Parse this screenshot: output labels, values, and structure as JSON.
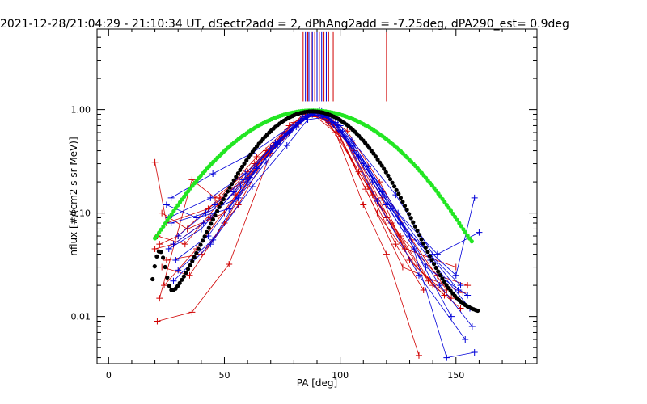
{
  "chart_data": {
    "type": "scatter",
    "title": "2021-12-28/21:04:29 - 21:10:34 UT, dSectr2add = 2, dPhAng2add = -7.25deg, dPA290_est=   0.9deg",
    "xlabel": "PA [deg]",
    "ylabel": "nflux [#/(cm2 s sr MeV)]",
    "xlim": [
      -5,
      185
    ],
    "ylim": [
      0.0035,
      6.0
    ],
    "yscale": "log",
    "grid": false,
    "x_ticks": [
      0,
      50,
      100,
      150
    ],
    "x_tick_labels": [
      "0",
      "50",
      "100",
      "150"
    ],
    "y_ticks": [
      0.01,
      0.1,
      1.0
    ],
    "y_tick_labels": [
      "0.01",
      "0.10",
      "1.00"
    ],
    "colors": {
      "red": "#d00000",
      "blue": "#0000d8",
      "green": "#22e622",
      "black": "#000000"
    },
    "series": [
      {
        "color": "red",
        "style": "line+plus",
        "lines": [
          [
            [
              21,
              0.009
            ],
            [
              36,
              0.011
            ],
            [
              52,
              0.032
            ],
            [
              70,
              0.38
            ],
            [
              85,
              0.85
            ],
            [
              90,
              0.95
            ],
            [
              98,
              0.6
            ],
            [
              110,
              0.12
            ],
            [
              120,
              0.04
            ],
            [
              134,
              0.0042
            ]
          ],
          [
            [
              20,
              0.31
            ],
            [
              25,
              0.08
            ],
            [
              43,
              0.11
            ],
            [
              60,
              0.22
            ],
            [
              75,
              0.55
            ],
            [
              88,
              0.9
            ],
            [
              95,
              0.75
            ],
            [
              112,
              0.18
            ],
            [
              124,
              0.05
            ],
            [
              136,
              0.018
            ]
          ],
          [
            [
              22,
              0.05
            ],
            [
              30,
              0.06
            ],
            [
              48,
              0.14
            ],
            [
              64,
              0.35
            ],
            [
              80,
              0.75
            ],
            [
              90,
              0.95
            ],
            [
              102,
              0.55
            ],
            [
              118,
              0.14
            ],
            [
              130,
              0.035
            ],
            [
              145,
              0.016
            ]
          ],
          [
            [
              23,
              0.03
            ],
            [
              35,
              0.025
            ],
            [
              50,
              0.08
            ],
            [
              68,
              0.4
            ],
            [
              84,
              0.9
            ],
            [
              92,
              0.92
            ],
            [
              106,
              0.4
            ],
            [
              122,
              0.08
            ],
            [
              140,
              0.02
            ],
            [
              152,
              0.012
            ]
          ],
          [
            [
              20,
              0.045
            ],
            [
              28,
              0.05
            ],
            [
              44,
              0.09
            ],
            [
              58,
              0.2
            ],
            [
              78,
              0.7
            ],
            [
              87,
              0.95
            ],
            [
              100,
              0.55
            ],
            [
              116,
              0.1
            ],
            [
              133,
              0.03
            ],
            [
              148,
              0.015
            ]
          ],
          [
            [
              24,
              0.02
            ],
            [
              38,
              0.045
            ],
            [
              55,
              0.15
            ],
            [
              72,
              0.45
            ],
            [
              86,
              0.88
            ],
            [
              96,
              0.8
            ],
            [
              108,
              0.25
            ],
            [
              126,
              0.06
            ],
            [
              142,
              0.025
            ],
            [
              155,
              0.02
            ]
          ],
          [
            [
              21,
              0.06
            ],
            [
              33,
              0.05
            ],
            [
              47,
              0.12
            ],
            [
              63,
              0.3
            ],
            [
              76,
              0.6
            ],
            [
              89,
              0.93
            ],
            [
              99,
              0.7
            ],
            [
              114,
              0.15
            ],
            [
              128,
              0.045
            ],
            [
              150,
              0.03
            ]
          ],
          [
            [
              22,
              0.015
            ],
            [
              36,
              0.21
            ],
            [
              46,
              0.14
            ],
            [
              60,
              0.25
            ],
            [
              74,
              0.5
            ],
            [
              85,
              0.85
            ],
            [
              94,
              0.85
            ],
            [
              104,
              0.45
            ],
            [
              120,
              0.09
            ],
            [
              138,
              0.022
            ]
          ],
          [
            [
              23,
              0.1
            ],
            [
              34,
              0.07
            ],
            [
              50,
              0.1
            ],
            [
              66,
              0.33
            ],
            [
              82,
              0.72
            ],
            [
              91,
              0.98
            ],
            [
              103,
              0.62
            ],
            [
              117,
              0.2
            ],
            [
              131,
              0.055
            ],
            [
              146,
              0.018
            ]
          ],
          [
            [
              25,
              0.035
            ],
            [
              40,
              0.04
            ],
            [
              56,
              0.12
            ],
            [
              70,
              0.42
            ],
            [
              83,
              0.8
            ],
            [
              88,
              0.92
            ],
            [
              97,
              0.72
            ],
            [
              111,
              0.17
            ],
            [
              127,
              0.03
            ],
            [
              153,
              0.017
            ]
          ]
        ]
      },
      {
        "color": "blue",
        "style": "line+plus",
        "lines": [
          [
            [
              27,
              0.14
            ],
            [
              45,
              0.24
            ],
            [
              62,
              0.38
            ],
            [
              80,
              0.72
            ],
            [
              88,
              0.9
            ],
            [
              100,
              0.7
            ],
            [
              124,
              0.15
            ],
            [
              140,
              0.04
            ],
            [
              150,
              0.025
            ],
            [
              158,
              0.14
            ]
          ],
          [
            [
              28,
              0.022
            ],
            [
              44,
              0.05
            ],
            [
              62,
              0.18
            ],
            [
              77,
              0.45
            ],
            [
              86,
              0.8
            ],
            [
              95,
              0.85
            ],
            [
              112,
              0.28
            ],
            [
              130,
              0.06
            ],
            [
              146,
              0.004
            ],
            [
              158,
              0.0045
            ]
          ],
          [
            [
              26,
              0.045
            ],
            [
              40,
              0.07
            ],
            [
              54,
              0.16
            ],
            [
              70,
              0.42
            ],
            [
              84,
              0.82
            ],
            [
              92,
              0.96
            ],
            [
              106,
              0.45
            ],
            [
              125,
              0.1
            ],
            [
              142,
              0.04
            ],
            [
              160,
              0.065
            ]
          ],
          [
            [
              30,
              0.06
            ],
            [
              46,
              0.12
            ],
            [
              58,
              0.21
            ],
            [
              72,
              0.48
            ],
            [
              82,
              0.75
            ],
            [
              90,
              0.92
            ],
            [
              102,
              0.55
            ],
            [
              120,
              0.12
            ],
            [
              137,
              0.03
            ],
            [
              155,
              0.016
            ]
          ],
          [
            [
              27,
              0.08
            ],
            [
              42,
              0.1
            ],
            [
              56,
              0.14
            ],
            [
              68,
              0.31
            ],
            [
              81,
              0.68
            ],
            [
              89,
              0.95
            ],
            [
              98,
              0.75
            ],
            [
              114,
              0.2
            ],
            [
              132,
              0.045
            ],
            [
              148,
              0.01
            ]
          ],
          [
            [
              29,
              0.035
            ],
            [
              43,
              0.06
            ],
            [
              60,
              0.2
            ],
            [
              74,
              0.5
            ],
            [
              85,
              0.85
            ],
            [
              93,
              0.9
            ],
            [
              108,
              0.35
            ],
            [
              126,
              0.08
            ],
            [
              143,
              0.02
            ],
            [
              157,
              0.008
            ]
          ],
          [
            [
              25,
              0.12
            ],
            [
              38,
              0.09
            ],
            [
              52,
              0.11
            ],
            [
              64,
              0.27
            ],
            [
              78,
              0.6
            ],
            [
              87,
              0.93
            ],
            [
              96,
              0.8
            ],
            [
              110,
              0.3
            ],
            [
              128,
              0.07
            ],
            [
              152,
              0.02
            ]
          ],
          [
            [
              28,
              0.05
            ],
            [
              41,
              0.08
            ],
            [
              57,
              0.18
            ],
            [
              73,
              0.46
            ],
            [
              86,
              0.88
            ],
            [
              94,
              0.88
            ],
            [
              105,
              0.5
            ],
            [
              122,
              0.11
            ],
            [
              139,
              0.035
            ],
            [
              156,
              0.012
            ]
          ],
          [
            [
              26,
              0.09
            ],
            [
              44,
              0.14
            ],
            [
              59,
              0.24
            ],
            [
              71,
              0.45
            ],
            [
              83,
              0.78
            ],
            [
              91,
              0.97
            ],
            [
              101,
              0.62
            ],
            [
              118,
              0.16
            ],
            [
              135,
              0.05
            ],
            [
              151,
              0.018
            ]
          ],
          [
            [
              30,
              0.028
            ],
            [
              45,
              0.055
            ],
            [
              61,
              0.22
            ],
            [
              76,
              0.58
            ],
            [
              84,
              0.86
            ],
            [
              90,
              0.95
            ],
            [
              99,
              0.72
            ],
            [
              116,
              0.13
            ],
            [
              134,
              0.025
            ],
            [
              154,
              0.006
            ]
          ]
        ]
      },
      {
        "name": "",
        "color": "green",
        "style": "dots",
        "fit": "green",
        "x_range": [
          20,
          157
        ]
      },
      {
        "name": "",
        "color": "black",
        "style": "dots",
        "fit": "black",
        "x_range": [
          19,
          160
        ]
      }
    ],
    "vertical_marks": {
      "top_value": 5.7,
      "red": [
        [
          84,
          1.2
        ],
        [
          86,
          1.2
        ],
        [
          87.5,
          1.2
        ],
        [
          89,
          1.2
        ],
        [
          91,
          1.2
        ],
        [
          93,
          1.2
        ],
        [
          95,
          1.2
        ],
        [
          97,
          1.2
        ],
        [
          120,
          1.2
        ]
      ],
      "blue": [
        [
          85,
          1.2
        ],
        [
          86.5,
          1.2
        ],
        [
          88,
          1.2
        ],
        [
          90,
          1.2
        ],
        [
          92,
          1.2
        ],
        [
          94,
          1.2
        ]
      ]
    }
  }
}
